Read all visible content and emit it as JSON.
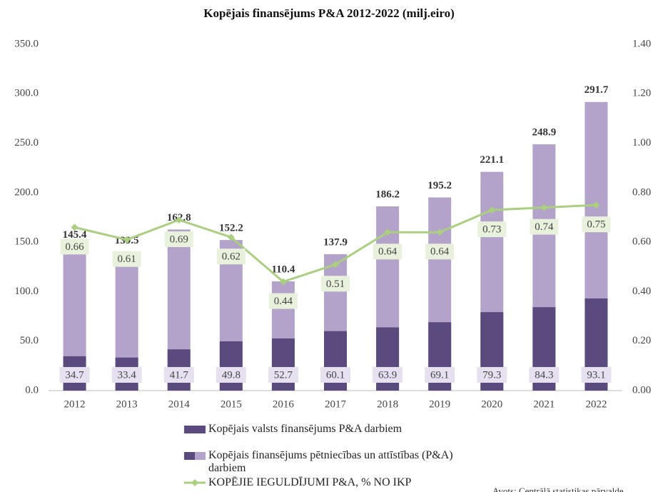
{
  "chart_data": {
    "type": "bar",
    "title": "Kopējais finansējums P&A 2012-2022 (milj.eiro)",
    "categories": [
      "2012",
      "2013",
      "2014",
      "2015",
      "2016",
      "2017",
      "2018",
      "2019",
      "2020",
      "2021",
      "2022"
    ],
    "series": [
      {
        "name": "Kopējais valsts finansējums P&A darbiem",
        "color": "#5b4a7e",
        "values": [
          34.7,
          33.4,
          41.7,
          49.8,
          52.7,
          60.1,
          63.9,
          69.1,
          79.3,
          84.3,
          93.1
        ]
      },
      {
        "name": "Kopējais finansējums pētniecības un attīstības (P&A) darbiem",
        "color": "#b3a2c9",
        "values": [
          145.4,
          139.5,
          162.8,
          152.2,
          110.4,
          137.9,
          186.2,
          195.2,
          221.1,
          248.9,
          291.7
        ]
      },
      {
        "name": "KOPĒJIE IEGULDĪJUMI P&A, % NO IKP",
        "color": "#a9cf7f",
        "type": "line",
        "axis": "y2",
        "values": [
          0.66,
          0.61,
          0.69,
          0.62,
          0.44,
          0.51,
          0.64,
          0.64,
          0.73,
          0.74,
          0.75
        ]
      }
    ],
    "ylim": [
      0,
      350
    ],
    "yticks": [
      {
        "value": 0,
        "label": "0.0"
      },
      {
        "value": 50,
        "label": "50.0"
      },
      {
        "value": 100,
        "label": "100.0"
      },
      {
        "value": 150,
        "label": "150.0"
      },
      {
        "value": 200,
        "label": "200.0"
      },
      {
        "value": 250,
        "label": "250.0"
      },
      {
        "value": 300,
        "label": "300.0"
      },
      {
        "value": 350,
        "label": "350.0"
      }
    ],
    "y2lim": [
      0,
      1.4
    ],
    "y2ticks": [
      {
        "value": 0,
        "label": "0.00"
      },
      {
        "value": 0.2,
        "label": "0.20"
      },
      {
        "value": 0.4,
        "label": "0.40"
      },
      {
        "value": 0.6,
        "label": "0.60"
      },
      {
        "value": 0.8,
        "label": "0.80"
      },
      {
        "value": 1,
        "label": "1.00"
      },
      {
        "value": 1.2,
        "label": "1.20"
      },
      {
        "value": 1.4,
        "label": "1.40"
      }
    ],
    "source": "Avots: Centrālā statistikas pārvalde"
  }
}
